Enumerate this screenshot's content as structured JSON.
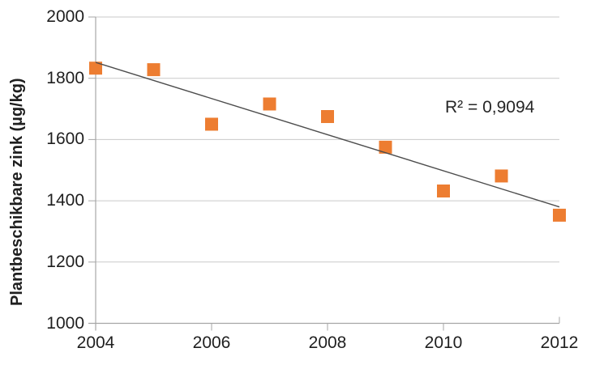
{
  "chart_data": {
    "type": "scatter",
    "title": "",
    "xlabel": "",
    "ylabel": "Plantbeschikbare zink (µg/kg)",
    "x": [
      2004,
      2005,
      2006,
      2007,
      2008,
      2009,
      2010,
      2011,
      2012
    ],
    "values": [
      1833,
      1828,
      1650,
      1716,
      1675,
      1575,
      1432,
      1481,
      1353
    ],
    "xlim": [
      2004,
      2012
    ],
    "ylim": [
      1000,
      2000
    ],
    "xticks": [
      2004,
      2006,
      2008,
      2010,
      2012
    ],
    "yticks": [
      2000,
      1800,
      1600,
      1400,
      1200,
      1000
    ],
    "grid": true,
    "legend": false,
    "r_squared_label": "R² = 0,9094",
    "trendline": {
      "type": "linear",
      "r_squared": 0.9094
    },
    "colors": {
      "marker": "#ED7D31",
      "trendline": "#4D4D4D",
      "gridline": "#C9C9C9",
      "axis": "#A6A6A6",
      "text": "#1F1F1F"
    }
  }
}
